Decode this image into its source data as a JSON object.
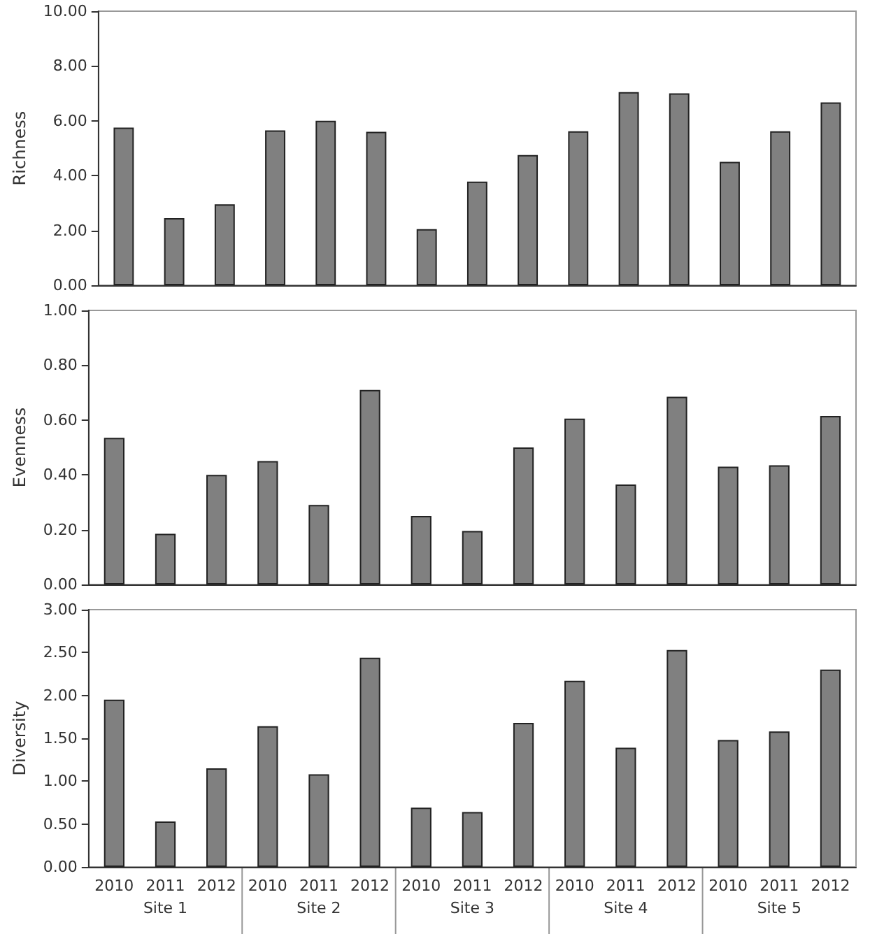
{
  "chart_data": [
    {
      "type": "bar",
      "ylabel": "Richness",
      "categories": [
        "2010",
        "2011",
        "2012",
        "2010",
        "2011",
        "2012",
        "2010",
        "2011",
        "2012",
        "2010",
        "2011",
        "2012",
        "2010",
        "2011",
        "2012"
      ],
      "values": [
        5.75,
        2.45,
        2.95,
        5.65,
        6.0,
        5.6,
        2.05,
        3.78,
        4.75,
        5.62,
        7.05,
        7.0,
        4.5,
        5.62,
        6.67
      ],
      "color": "#808080",
      "ylim": [
        0,
        10
      ],
      "yticks": [
        {
          "value": 0,
          "label": "0.00"
        },
        {
          "value": 2,
          "label": "2.00"
        },
        {
          "value": 4,
          "label": "4.00"
        },
        {
          "value": 6,
          "label": "6.00"
        },
        {
          "value": 8,
          "label": "8.00"
        },
        {
          "value": 10,
          "label": "10.00"
        }
      ],
      "grid": false,
      "tick_labels": "y"
    },
    {
      "type": "bar",
      "ylabel": "Evenness",
      "categories": [
        "2010",
        "2011",
        "2012",
        "2010",
        "2011",
        "2012",
        "2010",
        "2011",
        "2012",
        "2010",
        "2011",
        "2012",
        "2010",
        "2011",
        "2012"
      ],
      "values": [
        0.535,
        0.185,
        0.4,
        0.45,
        0.29,
        0.71,
        0.25,
        0.195,
        0.5,
        0.605,
        0.365,
        0.685,
        0.43,
        0.435,
        0.615
      ],
      "color": "#808080",
      "ylim": [
        0,
        1
      ],
      "yticks": [
        {
          "value": 0,
          "label": "0.00"
        },
        {
          "value": 0.2,
          "label": "0.20"
        },
        {
          "value": 0.4,
          "label": "0.40"
        },
        {
          "value": 0.6,
          "label": "0.60"
        },
        {
          "value": 0.8,
          "label": "0.80"
        },
        {
          "value": 1,
          "label": "1.00"
        }
      ],
      "grid": false,
      "tick_labels": "y"
    },
    {
      "type": "bar",
      "ylabel": "Diversity",
      "categories": [
        "2010",
        "2011",
        "2012",
        "2010",
        "2011",
        "2012",
        "2010",
        "2011",
        "2012",
        "2010",
        "2011",
        "2012",
        "2010",
        "2011",
        "2012"
      ],
      "values": [
        1.95,
        0.53,
        1.15,
        1.64,
        1.08,
        2.44,
        0.69,
        0.64,
        1.68,
        2.17,
        1.39,
        2.53,
        1.48,
        1.58,
        2.3
      ],
      "color": "#808080",
      "ylim": [
        0,
        3
      ],
      "yticks": [
        {
          "value": 0,
          "label": "0.00"
        },
        {
          "value": 0.5,
          "label": "0.50"
        },
        {
          "value": 1,
          "label": "1.00"
        },
        {
          "value": 1.5,
          "label": "1.50"
        },
        {
          "value": 2,
          "label": "2.00"
        },
        {
          "value": 2.5,
          "label": "2.50"
        },
        {
          "value": 3,
          "label": "3.00"
        }
      ],
      "grid": false,
      "annotations": [
        "Site 1",
        "Site 2",
        "Site 3",
        "Site 4",
        "Site 5"
      ]
    }
  ]
}
